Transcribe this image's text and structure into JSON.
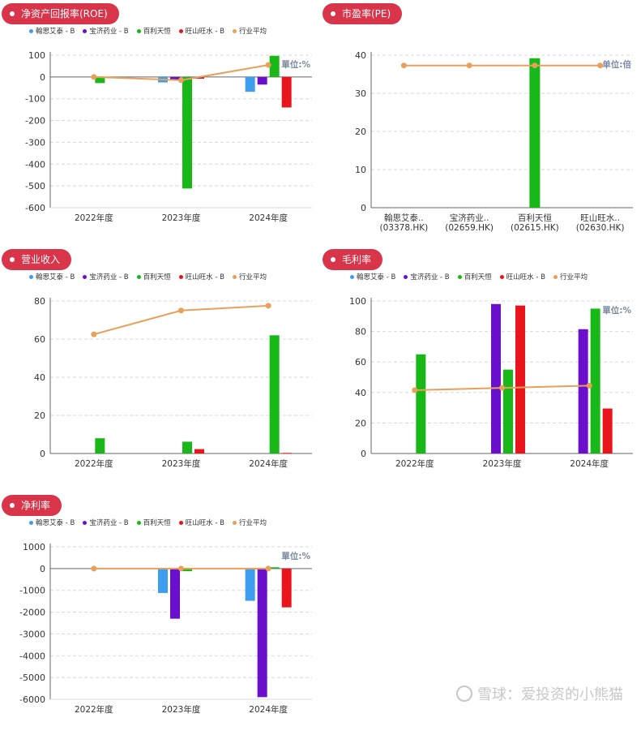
{
  "legend_items": [
    {
      "name": "翰思艾泰 - B",
      "color": "#3d9ef0"
    },
    {
      "name": "宝济药业 - B",
      "color": "#6a0fcc"
    },
    {
      "name": "百利天恒",
      "color": "#18b818"
    },
    {
      "name": "旺山旺水 - B",
      "color": "#e8161c"
    },
    {
      "name": "行业平均",
      "color": "#e8a05a"
    }
  ],
  "watermark": "雪球：爱投资的小熊猫",
  "chart_data": [
    {
      "title": "净资产回报率(ROE)",
      "type": "bar",
      "unit_label": "單位:%",
      "categories": [
        "2022年度",
        "2023年度",
        "2024年度"
      ],
      "ylim": [
        -600,
        100
      ],
      "yticks": [
        100,
        0,
        -100,
        -200,
        -300,
        -400,
        -500,
        -600
      ],
      "grid": true,
      "show_legend": true,
      "series": [
        {
          "name": "翰思艾泰 - B",
          "color": "#3d9ef0",
          "values": [
            null,
            -25,
            -68
          ]
        },
        {
          "name": "宝济药业 - B",
          "color": "#6a0fcc",
          "values": [
            null,
            -15,
            -35
          ]
        },
        {
          "name": "百利天恒",
          "color": "#18b818",
          "values": [
            -28,
            -512,
            97
          ]
        },
        {
          "name": "旺山旺水 - B",
          "color": "#e8161c",
          "values": [
            null,
            -8,
            -140
          ]
        }
      ],
      "line": {
        "name": "行业平均",
        "color": "#e8a05a",
        "values": [
          0,
          -15,
          55
        ]
      }
    },
    {
      "title": "市盈率(PE)",
      "type": "bar",
      "unit_label": "单位:倍",
      "categories": [
        "翰思艾泰..\n(03378.HK)",
        "宝济药业..\n(02659.HK)",
        "百利天恒\n(02615.HK)",
        "旺山旺水..\n(02630.HK)"
      ],
      "ylim": [
        0,
        40
      ],
      "yticks": [
        40,
        30,
        20,
        10,
        0
      ],
      "grid": true,
      "show_legend": false,
      "series": [
        {
          "name": "百利天恒",
          "color": "#18b818",
          "values": [
            null,
            null,
            39.2,
            null
          ]
        }
      ],
      "line": {
        "name": "行业平均",
        "color": "#e8a05a",
        "values": [
          37.3,
          37.3,
          37.3,
          37.3
        ]
      }
    },
    {
      "title": "营业收入",
      "type": "bar",
      "unit_label": "",
      "categories": [
        "2022年度",
        "2023年度",
        "2024年度"
      ],
      "ylim": [
        0,
        80
      ],
      "yticks": [
        80,
        60,
        40,
        20,
        0
      ],
      "grid": true,
      "show_legend": true,
      "series": [
        {
          "name": "翰思艾泰 - B",
          "color": "#3d9ef0",
          "values": [
            null,
            null,
            null
          ]
        },
        {
          "name": "宝济药业 - B",
          "color": "#6a0fcc",
          "values": [
            null,
            null,
            null
          ]
        },
        {
          "name": "百利天恒",
          "color": "#18b818",
          "values": [
            8,
            6.2,
            62
          ]
        },
        {
          "name": "旺山旺水 - B",
          "color": "#e8161c",
          "values": [
            null,
            2.3,
            0.3
          ]
        }
      ],
      "line": {
        "name": "行业平均",
        "color": "#e8a05a",
        "values": [
          62.5,
          75,
          77.5
        ]
      }
    },
    {
      "title": "毛利率",
      "type": "bar",
      "unit_label": "單位:%",
      "categories": [
        "2022年度",
        "2023年度",
        "2024年度"
      ],
      "ylim": [
        0,
        100
      ],
      "yticks": [
        100,
        80,
        60,
        40,
        20,
        0
      ],
      "grid": true,
      "show_legend": true,
      "series": [
        {
          "name": "翰思艾泰 - B",
          "color": "#3d9ef0",
          "values": [
            null,
            null,
            null
          ]
        },
        {
          "name": "宝济药业 - B",
          "color": "#6a0fcc",
          "values": [
            null,
            98,
            81.5
          ]
        },
        {
          "name": "百利天恒",
          "color": "#18b818",
          "values": [
            65,
            55,
            95
          ]
        },
        {
          "name": "旺山旺水 - B",
          "color": "#e8161c",
          "values": [
            null,
            97,
            29.5
          ]
        }
      ],
      "line": {
        "name": "行业平均",
        "color": "#e8a05a",
        "values": [
          41.5,
          43,
          44.5
        ]
      }
    },
    {
      "title": "净利率",
      "type": "bar",
      "unit_label": "單位:%",
      "categories": [
        "2022年度",
        "2023年度",
        "2024年度"
      ],
      "ylim": [
        -6000,
        1000
      ],
      "yticks": [
        1000,
        0,
        -1000,
        -2000,
        -3000,
        -4000,
        -5000,
        -6000
      ],
      "grid": true,
      "show_legend": true,
      "series": [
        {
          "name": "翰思艾泰 - B",
          "color": "#3d9ef0",
          "values": [
            null,
            -1120,
            -1480
          ]
        },
        {
          "name": "宝济药业 - B",
          "color": "#6a0fcc",
          "values": [
            null,
            -2300,
            -5900
          ]
        },
        {
          "name": "百利天恒",
          "color": "#18b818",
          "values": [
            null,
            -120,
            60
          ]
        },
        {
          "name": "旺山旺水 - B",
          "color": "#e8161c",
          "values": [
            null,
            null,
            -1780
          ]
        }
      ],
      "line": {
        "name": "行业平均",
        "color": "#e8a05a",
        "values": [
          0,
          0,
          0
        ]
      }
    }
  ]
}
